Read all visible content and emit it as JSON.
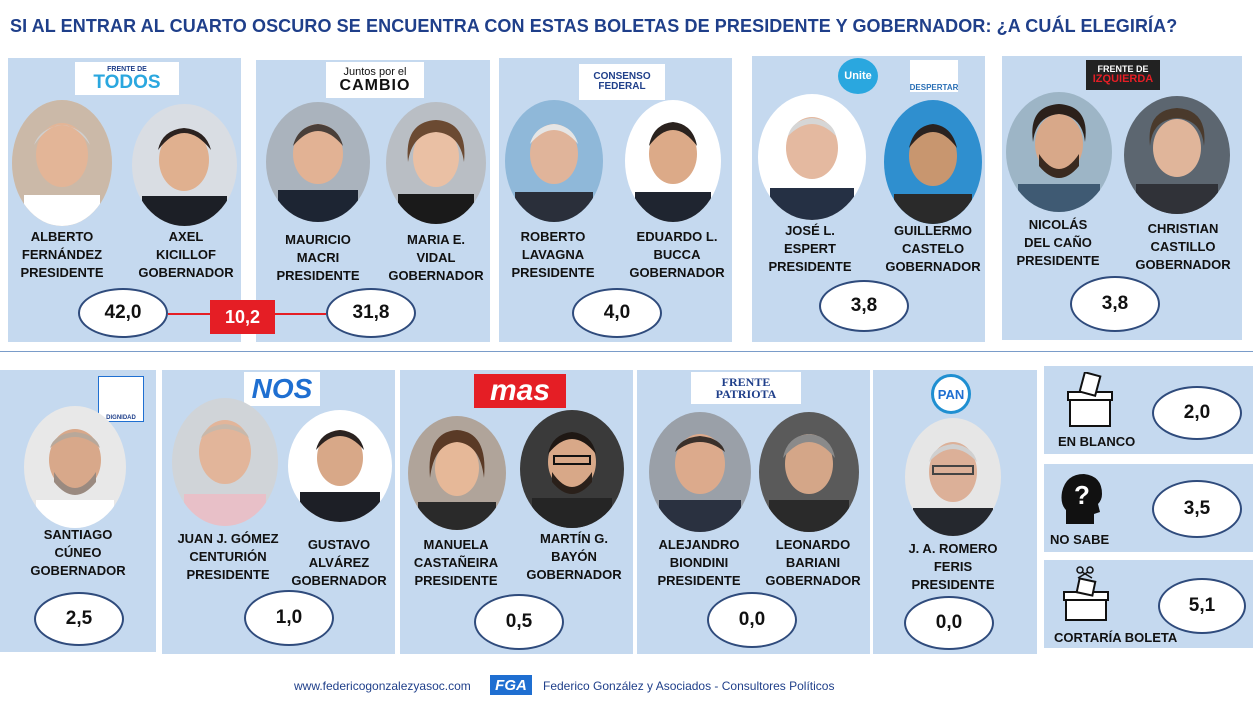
{
  "title": "SI AL ENTRAR AL CUARTO OSCURO SE ENCUENTRA CON ESTAS BOLETAS DE PRESIDENTE Y GOBERNADOR: ¿A CUÁL ELEGIRÍA?",
  "difference": "10,2",
  "row1": [
    {
      "logo": [
        "FRENTE DE",
        "TODOS"
      ],
      "c1": [
        "ALBERTO",
        "FERNÁNDEZ",
        "PRESIDENTE"
      ],
      "c2": [
        "AXEL",
        "KICILLOF",
        "GOBERNADOR"
      ],
      "value": "42,0"
    },
    {
      "logo": [
        "Juntos por el",
        "CAMBIO"
      ],
      "c1": [
        "MAURICIO",
        "MACRI",
        "PRESIDENTE"
      ],
      "c2": [
        "MARIA E.",
        "VIDAL",
        "GOBERNADOR"
      ],
      "value": "31,8"
    },
    {
      "logo": [
        "CONSENSO",
        "FEDERAL"
      ],
      "c1": [
        "ROBERTO",
        "LAVAGNA",
        "PRESIDENTE"
      ],
      "c2": [
        "EDUARDO L.",
        "BUCCA",
        "GOBERNADOR"
      ],
      "value": "4,0"
    },
    {
      "logo": [
        "Unite",
        "DESPERTAR"
      ],
      "c1": [
        "JOSÉ L.",
        "ESPERT",
        "PRESIDENTE"
      ],
      "c2": [
        "GUILLERMO",
        "CASTELO",
        "GOBERNADOR"
      ],
      "value": "3,8"
    },
    {
      "logo": [
        "FRENTE DE",
        "IZQUIERDA"
      ],
      "c1": [
        "NICOLÁS",
        "DEL CAÑO",
        "PRESIDENTE"
      ],
      "c2": [
        "CHRISTIAN",
        "CASTILLO",
        "GOBERNADOR"
      ],
      "value": "3,8"
    }
  ],
  "row2": [
    {
      "logo": [
        "DIGNIDAD"
      ],
      "c1": [
        "SANTIAGO",
        "CÚNEO",
        "GOBERNADOR"
      ],
      "value": "2,5"
    },
    {
      "logo": [
        "NOS"
      ],
      "c1": [
        "JUAN J. GÓMEZ",
        "CENTURIÓN",
        "PRESIDENTE"
      ],
      "c2": [
        "GUSTAVO",
        "ALVÁREZ",
        "GOBERNADOR"
      ],
      "value": "1,0"
    },
    {
      "logo": [
        "mas"
      ],
      "c1": [
        "MANUELA",
        "CASTAÑEIRA",
        "PRESIDENTE"
      ],
      "c2": [
        "MARTÍN G.",
        "BAYÓN",
        "GOBERNADOR"
      ],
      "value": "0,5"
    },
    {
      "logo": [
        "FRENTE",
        "PATRIOTA"
      ],
      "c1": [
        "ALEJANDRO",
        "BIONDINI",
        "PRESIDENTE"
      ],
      "c2": [
        "LEONARDO",
        "BARIANI",
        "GOBERNADOR"
      ],
      "value": "0,0"
    },
    {
      "logo": [
        "PAN"
      ],
      "c1": [
        "J. A. ROMERO",
        "FERIS",
        "PRESIDENTE"
      ],
      "value": "0,0"
    }
  ],
  "options": [
    {
      "label": "EN BLANCO",
      "value": "2,0",
      "icon": "ballot-box-icon"
    },
    {
      "label": "NO SABE",
      "value": "3,5",
      "icon": "question-head-icon"
    },
    {
      "label": "CORTARÍA BOLETA",
      "value": "5,1",
      "icon": "scissors-ballot-icon"
    }
  ],
  "footer": {
    "url": "www.federicogonzalezyasoc.com",
    "logo": "FGA",
    "company": "Federico González y Asociados - Consultores Políticos"
  },
  "colors": {
    "card": "#c5d9ef",
    "title": "#1f3f8a",
    "accent": "#e51e25"
  }
}
